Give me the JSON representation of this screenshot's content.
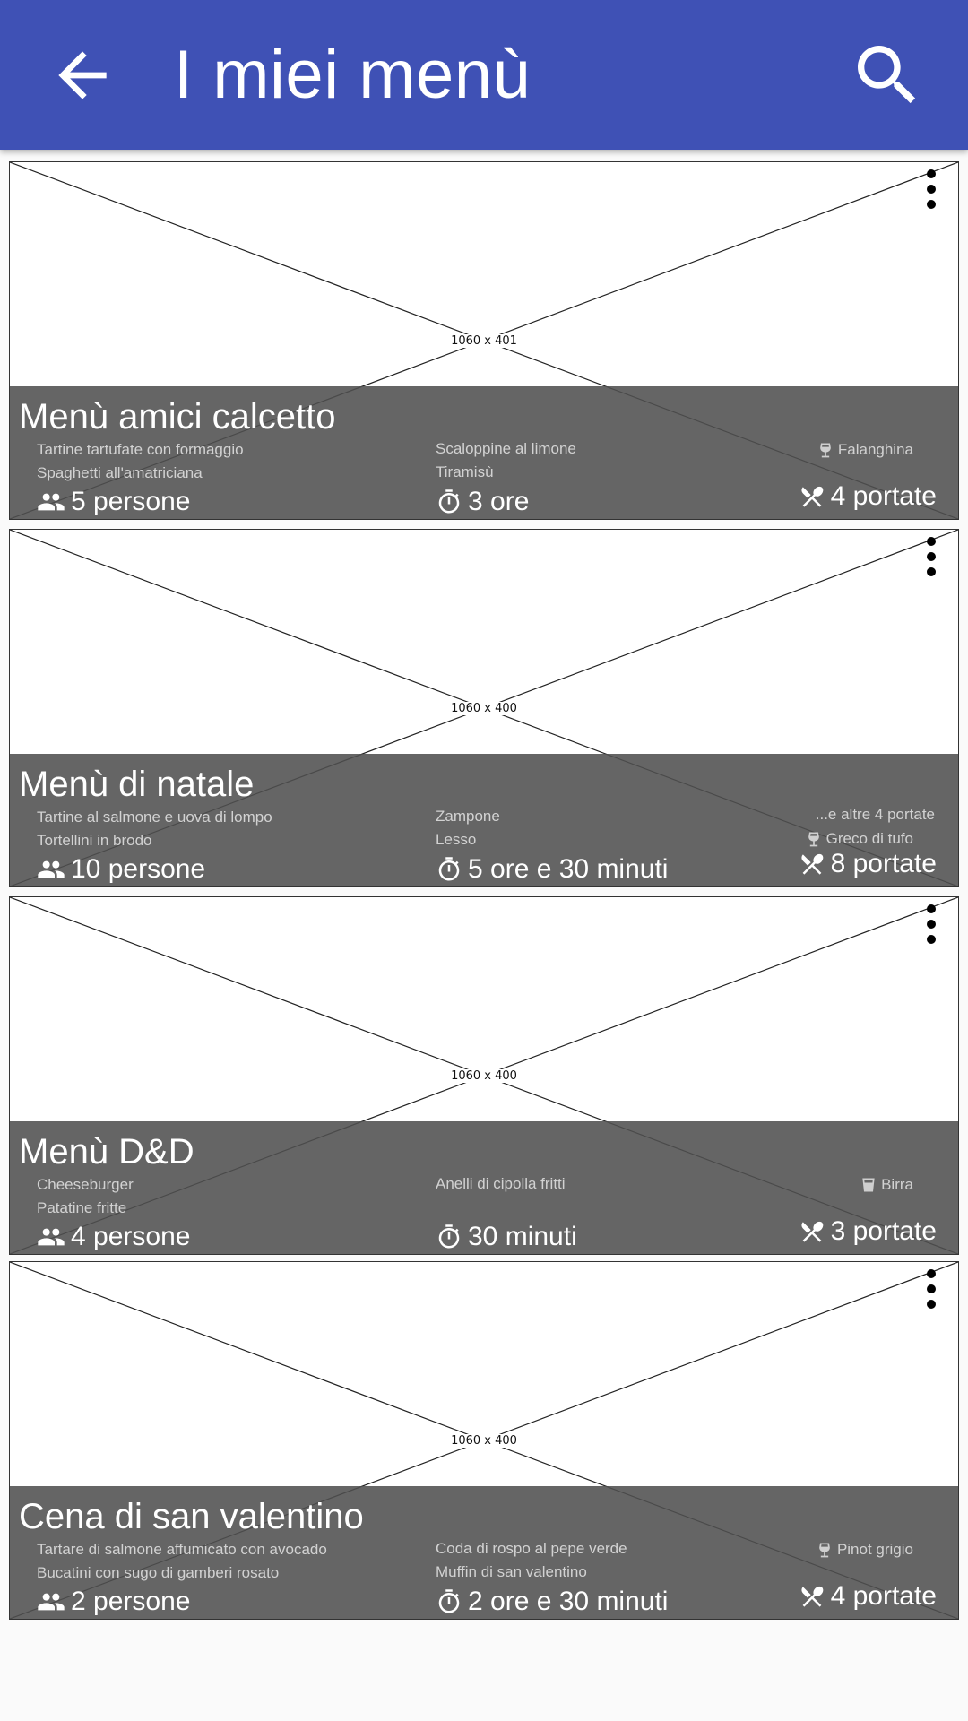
{
  "appbar": {
    "title": "I miei menù",
    "color": "#3f51b5",
    "back_icon": "arrow-back-icon",
    "search_icon": "search-icon"
  },
  "cards": [
    {
      "placeholder": "1060 x 401",
      "title": "Menù amici calcetto",
      "dishes": [
        "Tartine tartufate con formaggio",
        "Spaghetti all'amatriciana",
        "Scaloppine al limone",
        "Tiramisù"
      ],
      "extra": "",
      "drink": "Falanghina",
      "drink_icon": "wine-glass-icon",
      "people": "5 persone",
      "time": "3 ore",
      "courses": "4 portate"
    },
    {
      "placeholder": "1060 x 400",
      "title": "Menù di natale",
      "dishes": [
        "Tartine al salmone e uova di lompo",
        "Tortellini in brodo",
        "Zampone",
        "Lesso"
      ],
      "extra": "...e altre 4 portate",
      "drink": "Greco di tufo",
      "drink_icon": "wine-glass-icon",
      "people": "10 persone",
      "time": "5 ore e 30 minuti",
      "courses": "8 portate"
    },
    {
      "placeholder": "1060 x 400",
      "title": "Menù D&D",
      "dishes": [
        "Cheeseburger",
        "Patatine fritte",
        "Anelli di cipolla fritti",
        ""
      ],
      "extra": "",
      "drink": "Birra",
      "drink_icon": "beer-glass-icon",
      "people": "4 persone",
      "time": "30 minuti",
      "courses": "3 portate"
    },
    {
      "placeholder": "1060 x 400",
      "title": "Cena di san valentino",
      "dishes": [
        "Tartare di salmone affumicato con avocado",
        "Bucatini con sugo di gamberi rosato",
        "Coda di rospo al pepe verde",
        "Muffin di san valentino"
      ],
      "extra": "",
      "drink": "Pinot grigio",
      "drink_icon": "wine-glass-icon",
      "people": "2 persone",
      "time": "2 ore e 30 minuti",
      "courses": "4 portate"
    }
  ]
}
